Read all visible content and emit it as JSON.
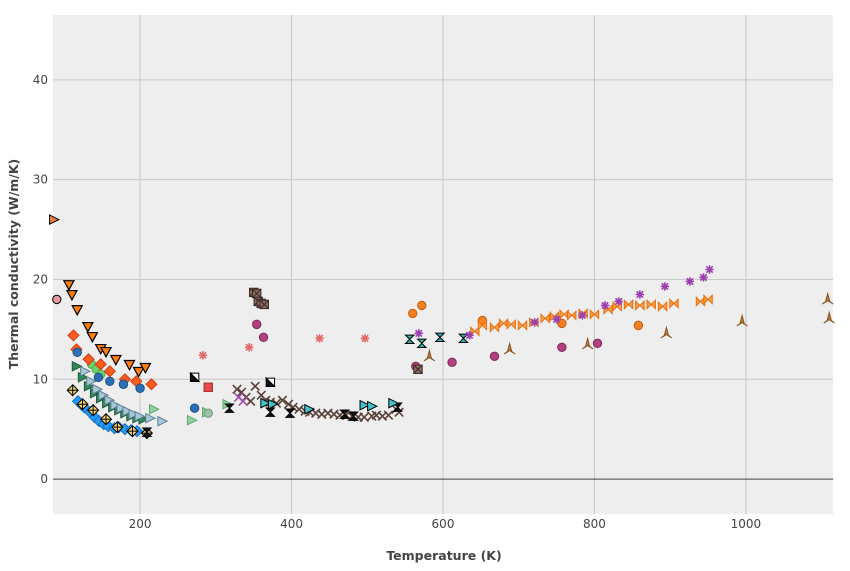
{
  "chart_data": {
    "type": "scatter",
    "title": "",
    "xlabel": "Temperature (K)",
    "ylabel": "Thermal conductivity (W/m/K)",
    "xlim": [
      85,
      1115
    ],
    "ylim": [
      -3.5,
      46.5
    ],
    "xticks": [
      200,
      400,
      600,
      800,
      1000
    ],
    "yticks": [
      0,
      10,
      20,
      30,
      40
    ],
    "grid": true,
    "legend": "none",
    "colors": {
      "plot_background": "#eeeeee",
      "grid": "#c8c8c8",
      "zero_line": "#444444"
    },
    "series": [
      {
        "marker": "triangle-down",
        "color": "#ff7f0e",
        "stroke": "#000000",
        "points": [
          [
            106,
            19.5
          ],
          [
            110,
            18.5
          ],
          [
            117,
            17
          ],
          [
            131,
            15.3
          ],
          [
            137,
            14.3
          ],
          [
            148,
            13.1
          ],
          [
            155,
            12.8
          ],
          [
            168,
            12
          ],
          [
            186,
            11.5
          ],
          [
            198,
            10.8
          ],
          [
            207,
            11.2
          ]
        ]
      },
      {
        "marker": "diamond",
        "color": "#1f9bff",
        "stroke": "#1a6fbf",
        "points": [
          [
            118,
            7.8
          ],
          [
            126,
            7.2
          ],
          [
            134,
            6.7
          ],
          [
            140,
            6.2
          ],
          [
            146,
            5.8
          ],
          [
            152,
            5.5
          ],
          [
            158,
            5.3
          ],
          [
            166,
            5.1
          ],
          [
            172,
            5.2
          ],
          [
            180,
            5.0
          ],
          [
            188,
            4.9
          ],
          [
            196,
            4.8
          ]
        ]
      },
      {
        "marker": "diamond-x",
        "color": "#f5d66b",
        "stroke": "#000000",
        "points": [
          [
            111,
            8.9
          ],
          [
            124,
            7.5
          ],
          [
            138,
            6.9
          ],
          [
            155,
            6.0
          ],
          [
            170,
            5.2
          ],
          [
            190,
            4.8
          ],
          [
            209,
            4.6
          ]
        ]
      },
      {
        "marker": "triangle-right",
        "color": "#2e8b57",
        "stroke": "#1f5a3a",
        "points": [
          [
            116,
            11.3
          ],
          [
            124,
            10.2
          ],
          [
            132,
            9.3
          ],
          [
            140,
            8.6
          ],
          [
            148,
            8.1
          ],
          [
            156,
            7.6
          ],
          [
            164,
            7.2
          ],
          [
            172,
            6.9
          ],
          [
            180,
            6.6
          ],
          [
            188,
            6.3
          ],
          [
            196,
            6.1
          ],
          [
            204,
            6.0
          ]
        ]
      },
      {
        "marker": "triangle-right",
        "color": "#a8c8d8",
        "stroke": "#5c7f93",
        "points": [
          [
            127,
            10.8
          ],
          [
            135,
            9.8
          ],
          [
            143,
            9.0
          ],
          [
            151,
            8.4
          ],
          [
            159,
            7.9
          ],
          [
            167,
            7.4
          ],
          [
            175,
            7.1
          ],
          [
            183,
            6.8
          ],
          [
            191,
            6.5
          ],
          [
            199,
            6.3
          ],
          [
            213,
            6.1
          ],
          [
            229,
            5.8
          ]
        ]
      },
      {
        "marker": "circle",
        "color": "#6dd36d",
        "stroke": "#4ca84c",
        "points": [
          [
            136,
            11.5
          ],
          [
            142,
            11.0
          ],
          [
            148,
            10.5
          ]
        ]
      },
      {
        "marker": "diamond",
        "color": "#ff5a1f",
        "stroke": "#cc3f10",
        "points": [
          [
            112,
            14.4
          ],
          [
            116,
            13.0
          ],
          [
            132,
            12.0
          ],
          [
            148,
            11.5
          ],
          [
            160,
            10.8
          ],
          [
            180,
            10.0
          ],
          [
            195,
            9.8
          ],
          [
            215,
            9.5
          ]
        ]
      },
      {
        "marker": "circle",
        "color": "#2b6fb6",
        "stroke": "#1d4f86",
        "points": [
          [
            117,
            12.7
          ],
          [
            145,
            10.2
          ],
          [
            160,
            9.8
          ],
          [
            178,
            9.5
          ],
          [
            200,
            9.1
          ],
          [
            272,
            7.1
          ]
        ]
      },
      {
        "marker": "triangle-right",
        "color": "#8fd19e",
        "stroke": "#5ea86f",
        "points": [
          [
            218,
            7.0
          ],
          [
            268,
            5.9
          ],
          [
            288,
            6.7
          ],
          [
            315,
            7.5
          ]
        ]
      },
      {
        "marker": "circle",
        "color": "#99c2a6",
        "stroke": "#6f9a7d",
        "points": [
          [
            290,
            6.6
          ]
        ]
      },
      {
        "marker": "square",
        "color": "#e8474b",
        "stroke": "#a82c2f",
        "points": [
          [
            290,
            9.2
          ]
        ]
      },
      {
        "marker": "triangle-ne",
        "color": "#111111",
        "stroke": "#000000",
        "points": [
          [
            272,
            10.2
          ],
          [
            372,
            9.7
          ]
        ]
      },
      {
        "marker": "asterisk",
        "color": "#e36a6a",
        "stroke": "#e36a6a",
        "points": [
          [
            283,
            12.4
          ],
          [
            344,
            13.2
          ],
          [
            354,
            15.5
          ],
          [
            363,
            14.2
          ],
          [
            437,
            14.1
          ],
          [
            497,
            14.1
          ]
        ]
      },
      {
        "marker": "circle",
        "color": "#b34080",
        "stroke": "#7a2a56",
        "points": [
          [
            354,
            15.5
          ],
          [
            363,
            14.2
          ],
          [
            564,
            11.3
          ],
          [
            612,
            11.7
          ],
          [
            668,
            12.3
          ],
          [
            757,
            13.2
          ],
          [
            804,
            13.6
          ]
        ]
      },
      {
        "marker": "square-x",
        "color": "#8c6d62",
        "stroke": "#3a2a24",
        "points": [
          [
            350,
            18.7
          ],
          [
            354,
            18.6
          ],
          [
            356,
            17.8
          ],
          [
            360,
            17.6
          ],
          [
            364,
            17.5
          ],
          [
            567,
            11.0
          ]
        ]
      },
      {
        "marker": "x",
        "color": "#8c6d62",
        "stroke": "#5a4038",
        "points": [
          [
            328,
            9.0
          ],
          [
            334,
            8.7
          ],
          [
            340,
            8.2
          ],
          [
            346,
            7.8
          ],
          [
            352,
            9.3
          ],
          [
            360,
            8.4
          ],
          [
            366,
            7.9
          ],
          [
            372,
            7.7
          ],
          [
            380,
            7.6
          ],
          [
            388,
            7.9
          ],
          [
            396,
            7.5
          ],
          [
            402,
            7.2
          ],
          [
            410,
            7.0
          ],
          [
            418,
            6.8
          ],
          [
            424,
            6.7
          ],
          [
            432,
            6.6
          ],
          [
            440,
            6.5
          ],
          [
            448,
            6.6
          ],
          [
            456,
            6.5
          ],
          [
            464,
            6.4
          ],
          [
            472,
            6.4
          ],
          [
            480,
            6.3
          ],
          [
            488,
            6.2
          ],
          [
            496,
            6.2
          ],
          [
            506,
            6.3
          ],
          [
            512,
            6.4
          ],
          [
            520,
            6.3
          ],
          [
            528,
            6.4
          ],
          [
            538,
            7.0
          ],
          [
            542,
            6.7
          ]
        ]
      },
      {
        "marker": "x",
        "color": "#c77ad1",
        "stroke": "#a64fb3",
        "points": [
          [
            330,
            8.2
          ],
          [
            336,
            7.8
          ]
        ]
      },
      {
        "marker": "hourglass",
        "color": "#111111",
        "stroke": "#000000",
        "points": [
          [
            209,
            4.7
          ],
          [
            318,
            7.1
          ],
          [
            372,
            6.7
          ],
          [
            398,
            6.6
          ],
          [
            470,
            6.5
          ],
          [
            482,
            6.3
          ],
          [
            540,
            7.2
          ]
        ]
      },
      {
        "marker": "hourglass",
        "color": "#2fb5b5",
        "stroke": "#000000",
        "points": [
          [
            556,
            14.0
          ],
          [
            572,
            13.6
          ],
          [
            596,
            14.2
          ],
          [
            627,
            14.1
          ]
        ]
      },
      {
        "marker": "triangle-right",
        "color": "#3fc4c9",
        "stroke": "#000000",
        "points": [
          [
            365,
            7.6
          ],
          [
            375,
            7.5
          ],
          [
            423,
            7.0
          ],
          [
            496,
            7.4
          ],
          [
            506,
            7.3
          ],
          [
            534,
            7.6
          ]
        ]
      },
      {
        "marker": "circle",
        "color": "#f58020",
        "stroke": "#c45e0f",
        "points": [
          [
            560,
            16.6
          ],
          [
            572,
            17.4
          ],
          [
            652,
            15.9
          ],
          [
            757,
            15.6
          ],
          [
            858,
            15.4
          ]
        ]
      },
      {
        "marker": "bowtie",
        "color": "#ff9f43",
        "stroke": "#e66f10",
        "points": [
          [
            642,
            14.8
          ],
          [
            652,
            15.4
          ],
          [
            668,
            15.2
          ],
          [
            680,
            15.6
          ],
          [
            690,
            15.5
          ],
          [
            705,
            15.4
          ],
          [
            720,
            15.7
          ],
          [
            735,
            16.1
          ],
          [
            747,
            16.3
          ],
          [
            760,
            16.5
          ],
          [
            770,
            16.4
          ],
          [
            785,
            16.6
          ],
          [
            800,
            16.5
          ],
          [
            818,
            17.0
          ],
          [
            830,
            17.3
          ],
          [
            845,
            17.5
          ],
          [
            860,
            17.4
          ],
          [
            875,
            17.5
          ],
          [
            890,
            17.3
          ],
          [
            905,
            17.6
          ],
          [
            940,
            17.8
          ],
          [
            950,
            18.0
          ]
        ]
      },
      {
        "marker": "asterisk",
        "color": "#c46bd6",
        "stroke": "#9b3fb0",
        "points": [
          [
            568,
            14.6
          ],
          [
            635,
            14.4
          ],
          [
            721,
            15.7
          ],
          [
            750,
            16.0
          ],
          [
            784,
            16.4
          ],
          [
            814,
            17.4
          ],
          [
            832,
            17.8
          ],
          [
            860,
            18.5
          ],
          [
            893,
            19.3
          ],
          [
            926,
            19.8
          ],
          [
            944,
            20.2
          ],
          [
            952,
            21.0
          ]
        ]
      },
      {
        "marker": "tri-up",
        "color": "#b87a3c",
        "stroke": "#8a5620",
        "points": [
          [
            582,
            12.3
          ],
          [
            688,
            13.0
          ],
          [
            791,
            13.5
          ],
          [
            895,
            14.6
          ],
          [
            995,
            15.8
          ],
          [
            1108,
            18.0
          ],
          [
            1110,
            16.1
          ]
        ]
      },
      {
        "marker": "triangle-right",
        "color": "#e8823a",
        "stroke": "#000000",
        "points": [
          [
            86,
            26.0
          ]
        ]
      },
      {
        "marker": "circle",
        "color": "#e89a9a",
        "stroke": "#000000",
        "points": [
          [
            90,
            18.0
          ]
        ]
      }
    ]
  }
}
